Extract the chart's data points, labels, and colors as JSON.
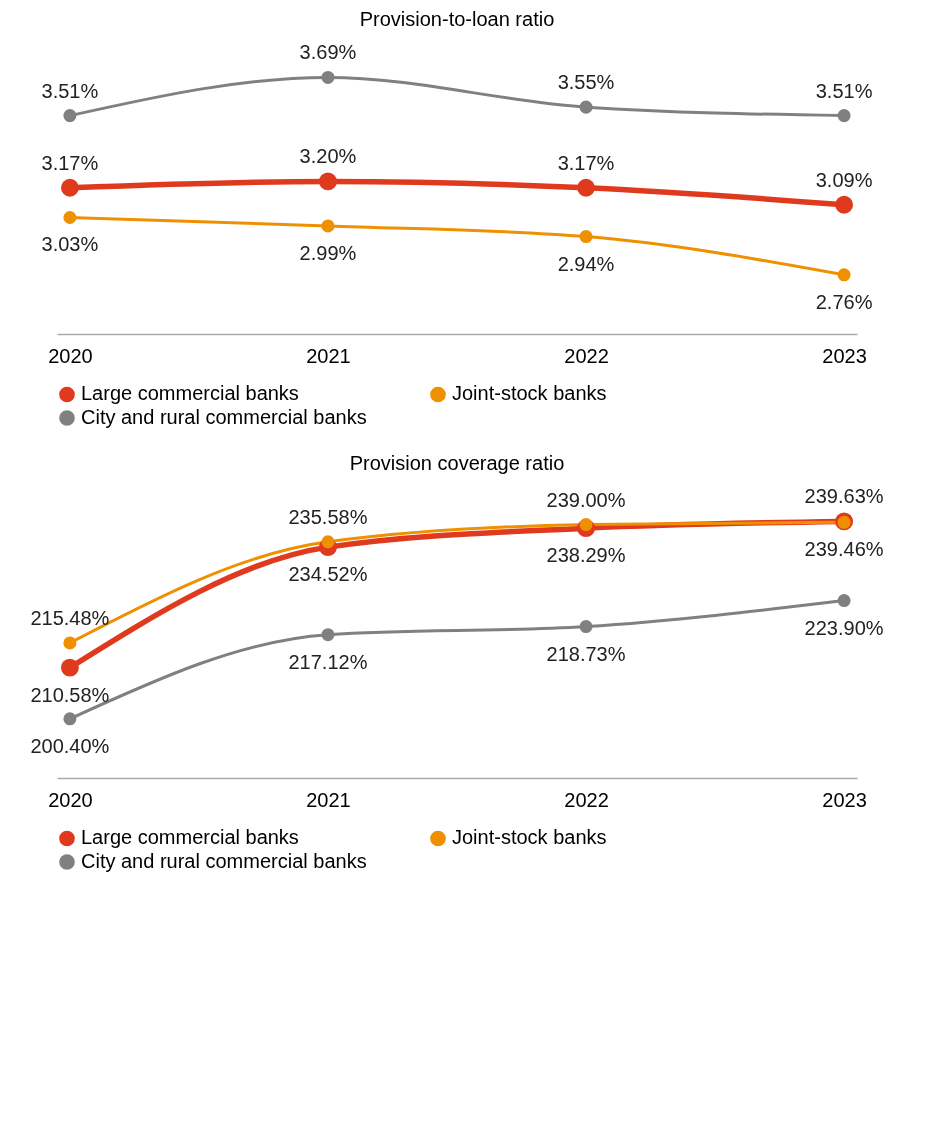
{
  "chart_data": [
    {
      "type": "line",
      "title": "Provision-to-loan ratio",
      "categories": [
        "2020",
        "2021",
        "2022",
        "2023"
      ],
      "legend": "bottom",
      "marker": "circle",
      "grid": false,
      "tick_labels": "x",
      "series": [
        {
          "name": "Large commercial banks",
          "color": "#e03a1e",
          "values": [
            3.17,
            3.2,
            3.17,
            3.09
          ],
          "value_labels": [
            "3.17%",
            "3.20%",
            "3.17%",
            "3.09%"
          ]
        },
        {
          "name": "Joint-stock banks",
          "color": "#ef9000",
          "values": [
            3.03,
            2.99,
            2.94,
            2.76
          ],
          "value_labels": [
            "3.03%",
            "2.99%",
            "2.94%",
            "2.76%"
          ]
        },
        {
          "name": "City and rural commercial banks",
          "color": "#808080",
          "values": [
            3.51,
            3.69,
            3.55,
            3.51
          ],
          "value_labels": [
            "3.51%",
            "3.69%",
            "3.55%",
            "3.51%"
          ]
        }
      ]
    },
    {
      "type": "line",
      "title": "Provision coverage ratio",
      "categories": [
        "2020",
        "2021",
        "2022",
        "2023"
      ],
      "legend": "bottom",
      "marker": "circle",
      "grid": false,
      "tick_labels": "x",
      "series": [
        {
          "name": "Large commercial banks",
          "color": "#e03a1e",
          "values": [
            210.58,
            234.52,
            238.29,
            239.63
          ],
          "value_labels": [
            "210.58%",
            "234.52%",
            "238.29%",
            "239.63%"
          ]
        },
        {
          "name": "Joint-stock banks",
          "color": "#ef9000",
          "values": [
            215.48,
            235.58,
            239.0,
            239.46
          ],
          "value_labels": [
            "215.48%",
            "235.58%",
            "239.00%",
            "239.46%"
          ]
        },
        {
          "name": "City and rural commercial banks",
          "color": "#808080",
          "values": [
            200.4,
            217.12,
            218.73,
            223.9
          ],
          "value_labels": [
            "200.40%",
            "217.12%",
            "218.73%",
            "223.90%"
          ]
        }
      ]
    }
  ]
}
